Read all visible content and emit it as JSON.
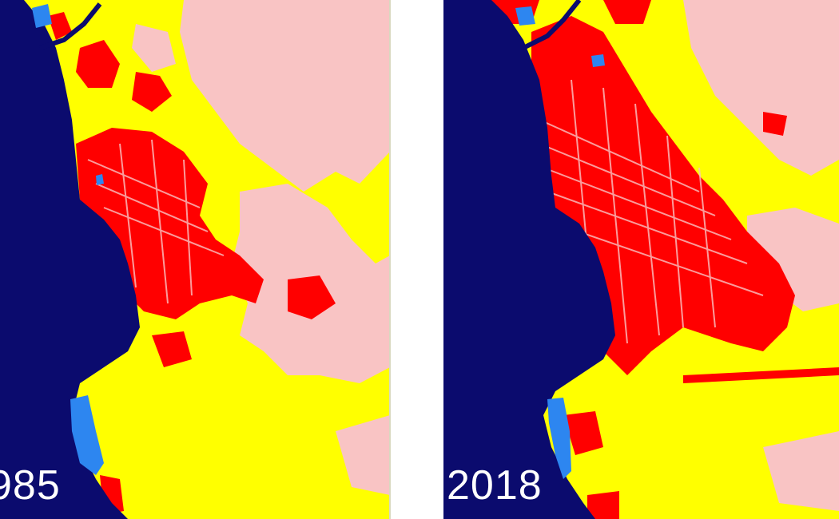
{
  "panels": [
    {
      "year": "985"
    },
    {
      "year": "2018"
    }
  ],
  "colors": {
    "sea": "#0b0b6e",
    "water_body": "#2d86f0",
    "built_up": "#ff0000",
    "vegetation": "#ffff00",
    "bare_land": "#f9c4c4"
  }
}
